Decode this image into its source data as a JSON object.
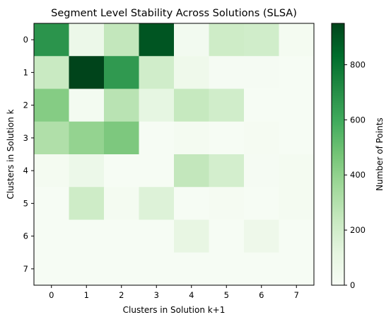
{
  "chart_data": {
    "type": "heatmap",
    "title": "Segment Level Stability Across Solutions (SLSA)",
    "xlabel": "Clusters in Solution k+1",
    "ylabel": "Clusters in Solution k",
    "x_categories": [
      "0",
      "1",
      "2",
      "3",
      "4",
      "5",
      "6",
      "7"
    ],
    "y_categories": [
      "0",
      "1",
      "2",
      "3",
      "4",
      "5",
      "6",
      "7"
    ],
    "values": [
      [
        680,
        70,
        250,
        900,
        30,
        210,
        200,
        20
      ],
      [
        230,
        950,
        660,
        200,
        55,
        10,
        10,
        5
      ],
      [
        430,
        25,
        280,
        110,
        240,
        200,
        5,
        5
      ],
      [
        310,
        390,
        450,
        5,
        20,
        5,
        15,
        5
      ],
      [
        20,
        70,
        5,
        5,
        250,
        190,
        10,
        20
      ],
      [
        5,
        210,
        20,
        150,
        5,
        15,
        5,
        20
      ],
      [
        5,
        5,
        5,
        5,
        100,
        5,
        60,
        5
      ],
      [
        5,
        5,
        5,
        5,
        5,
        5,
        5,
        5
      ]
    ],
    "colorbar": {
      "label": "Number of Points",
      "ticks": [
        0,
        200,
        400,
        600,
        800
      ],
      "min": 0,
      "max": 950,
      "colormap": "Greens"
    }
  }
}
